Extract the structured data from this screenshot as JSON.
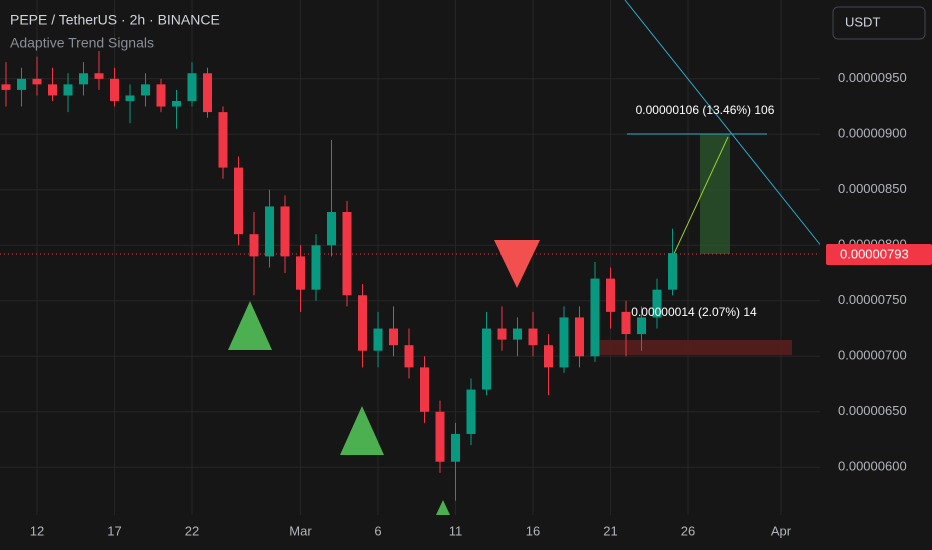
{
  "chart_data": {
    "type": "candlestick",
    "title": "PEPE / TetherUS · 2h · BINANCE",
    "indicator": "Adaptive Trend Signals",
    "currency": "USDT",
    "categories": [
      null,
      null,
      "12",
      null,
      null,
      null,
      null,
      "17",
      null,
      null,
      null,
      null,
      "22",
      null,
      null,
      null,
      null,
      null,
      null,
      "Mar",
      null,
      null,
      null,
      null,
      "6",
      null,
      null,
      null,
      null,
      "11",
      null,
      null,
      null,
      null,
      "16",
      null,
      null,
      null,
      null,
      "21",
      null,
      null,
      null,
      null,
      "26",
      null,
      null,
      null,
      null,
      null,
      "Apr",
      null,
      null
    ],
    "open": [
      9.45e-06,
      9.4e-06,
      9.5e-06,
      9.45e-06,
      9.35e-06,
      9.45e-06,
      9.55e-06,
      9.5e-06,
      9.3e-06,
      9.35e-06,
      9.45e-06,
      9.25e-06,
      9.3e-06,
      9.55e-06,
      9.2e-06,
      8.7e-06,
      8.1e-06,
      7.9e-06,
      8.35e-06,
      7.9e-06,
      7.6e-06,
      8e-06,
      8.3e-06,
      7.55e-06,
      7.05e-06,
      7.25e-06,
      7.1e-06,
      6.9e-06,
      6.5e-06,
      6.05e-06,
      6.3e-06,
      6.7e-06,
      7.25e-06,
      7.15e-06,
      7.25e-06,
      7.1e-06,
      6.9e-06,
      7.35e-06,
      7e-06,
      7.7e-06,
      7.4e-06,
      7.2e-06,
      7.35e-06,
      7.6e-06,
      null,
      null,
      null,
      null,
      null,
      null,
      null,
      null,
      null
    ],
    "high": [
      9.65e-06,
      9.6e-06,
      9.7e-06,
      9.6e-06,
      9.55e-06,
      9.65e-06,
      9.75e-06,
      9.6e-06,
      9.45e-06,
      9.55e-06,
      9.5e-06,
      9.4e-06,
      9.65e-06,
      9.6e-06,
      9.25e-06,
      8.8e-06,
      8.3e-06,
      8.5e-06,
      8.45e-06,
      8e-06,
      8.1e-06,
      8.95e-06,
      8.4e-06,
      7.65e-06,
      7.4e-06,
      7.45e-06,
      7.25e-06,
      7e-06,
      6.6e-06,
      6.4e-06,
      6.8e-06,
      7.4e-06,
      7.45e-06,
      7.35e-06,
      7.4e-06,
      7.2e-06,
      7.45e-06,
      7.45e-06,
      7.85e-06,
      7.8e-06,
      7.5e-06,
      7.45e-06,
      7.7e-06,
      8.15e-06,
      null,
      null,
      null,
      null,
      null,
      null,
      null,
      null,
      null
    ],
    "low": [
      9.25e-06,
      9.25e-06,
      9.35e-06,
      9.3e-06,
      9.2e-06,
      9.35e-06,
      9.4e-06,
      9.25e-06,
      9.1e-06,
      9.25e-06,
      9.2e-06,
      9.05e-06,
      9.25e-06,
      9.15e-06,
      8.6e-06,
      8e-06,
      7.55e-06,
      7.8e-06,
      7.75e-06,
      7.4e-06,
      7.5e-06,
      7.9e-06,
      7.45e-06,
      6.9e-06,
      6.9e-06,
      7e-06,
      6.8e-06,
      6.4e-06,
      5.95e-06,
      5.7e-06,
      6.2e-06,
      6.65e-06,
      7.05e-06,
      7e-06,
      7e-06,
      6.65e-06,
      6.85e-06,
      6.9e-06,
      6.95e-06,
      7.25e-06,
      7e-06,
      7.05e-06,
      7.25e-06,
      7.55e-06,
      null,
      null,
      null,
      null,
      null,
      null,
      null,
      null,
      null
    ],
    "close": [
      9.4e-06,
      9.5e-06,
      9.45e-06,
      9.35e-06,
      9.45e-06,
      9.55e-06,
      9.5e-06,
      9.3e-06,
      9.35e-06,
      9.45e-06,
      9.25e-06,
      9.3e-06,
      9.55e-06,
      9.2e-06,
      8.7e-06,
      8.1e-06,
      7.9e-06,
      8.35e-06,
      7.9e-06,
      7.6e-06,
      8e-06,
      8.3e-06,
      7.55e-06,
      7.05e-06,
      7.25e-06,
      7.1e-06,
      6.9e-06,
      6.5e-06,
      6.05e-06,
      6.3e-06,
      6.7e-06,
      7.25e-06,
      7.15e-06,
      7.25e-06,
      7.1e-06,
      6.9e-06,
      7.35e-06,
      7e-06,
      7.7e-06,
      7.4e-06,
      7.2e-06,
      7.35e-06,
      7.6e-06,
      7.93e-06,
      null,
      null,
      null,
      null,
      null,
      null,
      null,
      null,
      null
    ],
    "up_color": "#089981",
    "down_color": "#f23645",
    "last_price": {
      "value": 7.93e-06,
      "label": "0.00000793"
    },
    "ylim": [
      5.57e-06,
      1.021e-05
    ],
    "yticks": [
      {
        "value": 6e-06,
        "label": "0.00000600"
      },
      {
        "value": 6.5e-06,
        "label": "0.00000650"
      },
      {
        "value": 7e-06,
        "label": "0.00000700"
      },
      {
        "value": 7.5e-06,
        "label": "0.00000750"
      },
      {
        "value": 8e-06,
        "label": "0.00000800"
      },
      {
        "value": 8.5e-06,
        "label": "0.00000850"
      },
      {
        "value": 9e-06,
        "label": "0.00000900"
      },
      {
        "value": 9.5e-06,
        "label": "0.00000950"
      }
    ],
    "grid": true,
    "annotations": {
      "target": "0.00000106 (13.46%) 106",
      "stop": "0.00000014 (2.07%) 14"
    }
  }
}
